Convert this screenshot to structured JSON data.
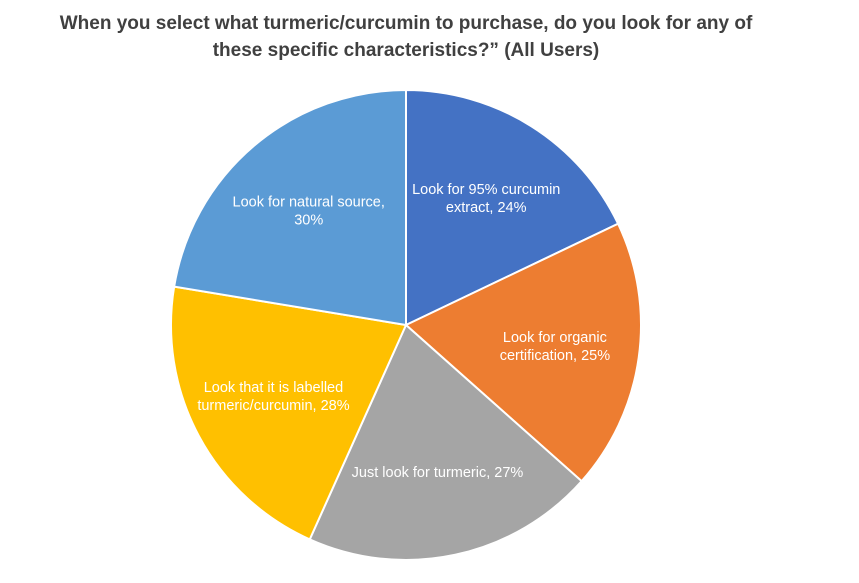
{
  "chart_data": {
    "type": "pie",
    "title_lines": [
      "When you select what turmeric/curcumin to purchase, do you look for any of",
      "these specific characteristics?” (All Users)"
    ],
    "legend": "none",
    "slices": [
      {
        "label_lines": [
          "Look for 95% curcumin",
          "extract, 24%"
        ],
        "label": "Look for 95% curcumin extract",
        "value": 24,
        "color": "#4472C4"
      },
      {
        "label_lines": [
          "Look for organic",
          "certification, 25%"
        ],
        "label": "Look for organic certification",
        "value": 25,
        "color": "#ED7D31"
      },
      {
        "label_lines": [
          "Just look for turmeric, 27%"
        ],
        "label": "Just look for turmeric",
        "value": 27,
        "color": "#A5A5A5"
      },
      {
        "label_lines": [
          "Look that it is labelled",
          "turmeric/curcumin, 28%"
        ],
        "label": "Look that it is labelled turmeric/curcumin",
        "value": 28,
        "color": "#FFC000"
      },
      {
        "label_lines": [
          "Look for natural source,",
          "30%"
        ],
        "label": "Look for natural source",
        "value": 30,
        "color": "#5B9BD5"
      }
    ]
  }
}
